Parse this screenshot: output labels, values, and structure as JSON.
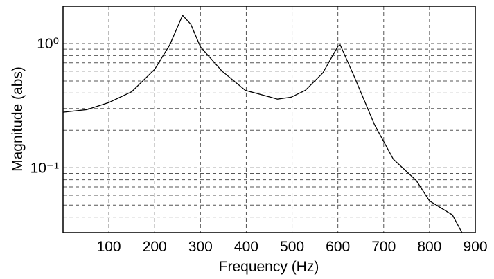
{
  "chart_data": {
    "type": "line",
    "x_label": "Frequency  (Hz)",
    "y_label": "Magnitude  (abs)",
    "x": [
      0,
      52,
      100,
      150,
      200,
      233,
      261,
      279,
      300,
      347,
      398,
      453,
      468,
      498,
      529,
      567,
      600,
      605,
      635,
      680,
      721,
      771,
      800,
      850,
      871
    ],
    "values": [
      0.28,
      0.294,
      0.335,
      0.41,
      0.62,
      0.975,
      1.69,
      1.43,
      0.94,
      0.6,
      0.42,
      0.37,
      0.357,
      0.37,
      0.42,
      0.58,
      0.95,
      0.975,
      0.55,
      0.222,
      0.117,
      0.079,
      0.054,
      0.0417,
      0.03
    ],
    "color": "#000000",
    "xlim": [
      0,
      900
    ],
    "xticks": [
      100,
      200,
      300,
      400,
      500,
      600,
      700,
      800,
      900
    ],
    "ylim": [
      0.03,
      2
    ],
    "yscale": "log",
    "yticks": [
      {
        "value": 1,
        "label": "10⁰"
      },
      {
        "value": 0.1,
        "label": "10⁻¹"
      }
    ],
    "minor_yticks": [
      0.04,
      0.05,
      0.06,
      0.07,
      0.08,
      0.09,
      0.2,
      0.3,
      0.4,
      0.5,
      0.6,
      0.7,
      0.8,
      0.9
    ],
    "grid": true
  }
}
